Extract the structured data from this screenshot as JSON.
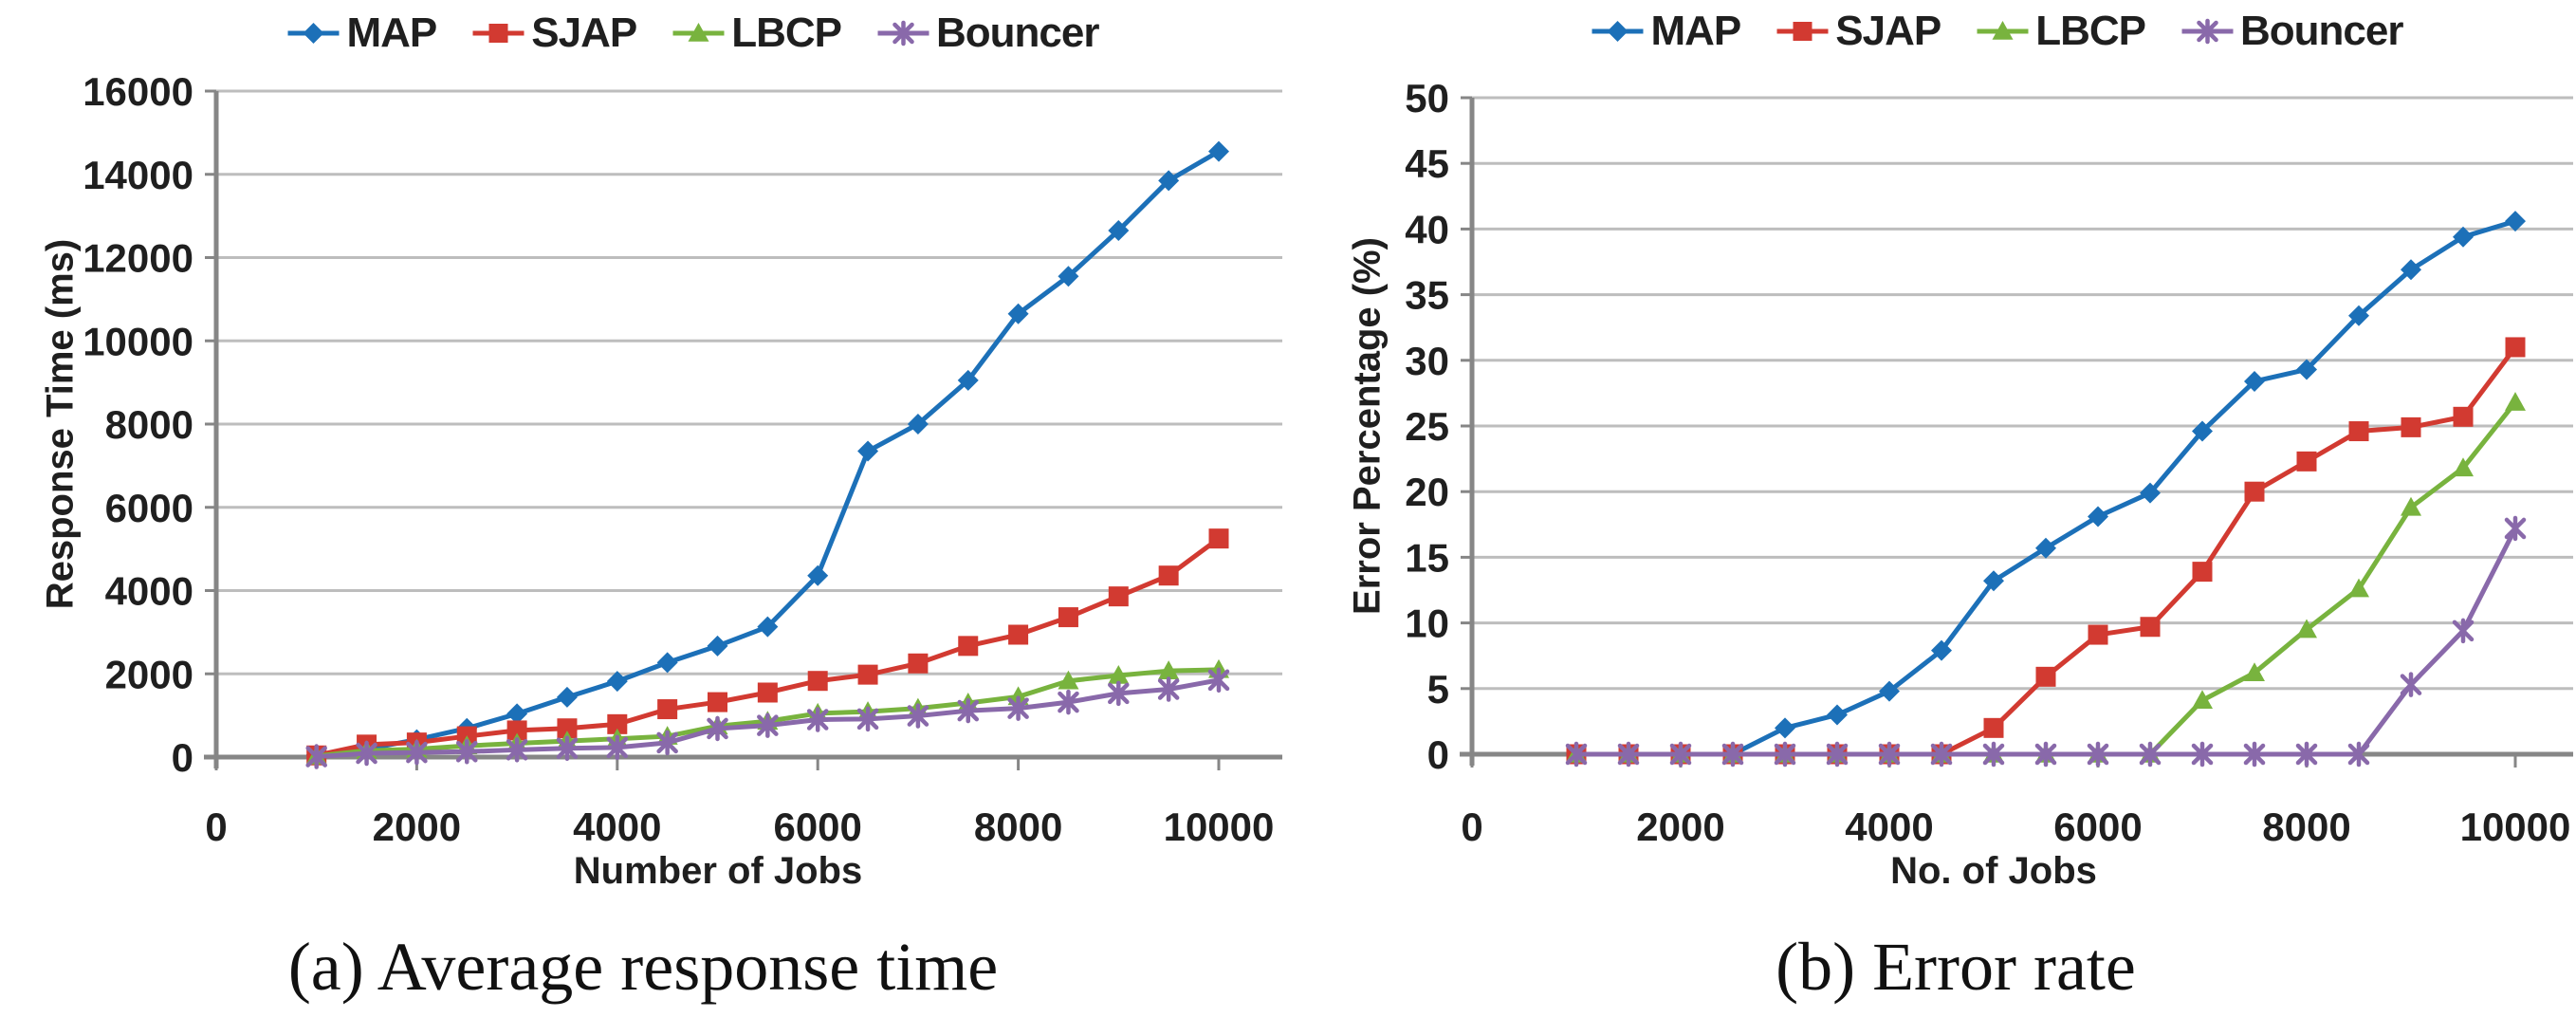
{
  "figure": {
    "background": "#ffffff",
    "text_color": "#1f1f1f",
    "gridline_color": "#bdbdbd",
    "axis_color": "#868686"
  },
  "legend": {
    "position": "top-center",
    "items": [
      {
        "label": "MAP",
        "color": "#1c70b8",
        "marker": "diamond"
      },
      {
        "label": "SJAP",
        "color": "#d23a31",
        "marker": "square"
      },
      {
        "label": "LBCP",
        "color": "#78b33e",
        "marker": "triangle"
      },
      {
        "label": "Bouncer",
        "color": "#8969aa",
        "marker": "asterisk"
      }
    ]
  },
  "chart_data": [
    {
      "type": "line",
      "caption": "(a) Average response time",
      "xlabel": "Number of Jobs",
      "ylabel": "Response Time (ms)",
      "grid": "horizontal",
      "legend_position": "top",
      "xlim": [
        0,
        10600
      ],
      "ylim": [
        0,
        16000
      ],
      "xticks": [
        0,
        2000,
        4000,
        6000,
        8000,
        10000
      ],
      "yticks": [
        0,
        2000,
        4000,
        6000,
        8000,
        10000,
        12000,
        14000,
        16000
      ],
      "x": [
        1000,
        1500,
        2000,
        2500,
        3000,
        3500,
        4000,
        4500,
        5000,
        5500,
        6000,
        6500,
        7000,
        7500,
        8000,
        8500,
        9000,
        9500,
        10000
      ],
      "series": [
        {
          "name": "MAP",
          "values": [
            50,
            190,
            420,
            690,
            1040,
            1440,
            1820,
            2270,
            2670,
            3130,
            4360,
            7350,
            8000,
            9050,
            10650,
            11550,
            12650,
            13850,
            14550
          ]
        },
        {
          "name": "SJAP",
          "values": [
            40,
            300,
            350,
            500,
            640,
            690,
            790,
            1150,
            1320,
            1550,
            1830,
            1980,
            2250,
            2670,
            2940,
            3360,
            3860,
            4360,
            5250
          ]
        },
        {
          "name": "LBCP",
          "values": [
            25,
            155,
            190,
            270,
            330,
            385,
            440,
            500,
            745,
            860,
            1050,
            1090,
            1170,
            1300,
            1450,
            1830,
            1960,
            2070,
            2100
          ]
        },
        {
          "name": "Bouncer",
          "values": [
            10,
            90,
            110,
            130,
            175,
            210,
            230,
            345,
            685,
            760,
            900,
            915,
            990,
            1115,
            1170,
            1320,
            1530,
            1630,
            1850
          ]
        }
      ]
    },
    {
      "type": "line",
      "caption": "(b) Error rate",
      "xlabel": "No. of Jobs",
      "ylabel": "Error Percentage (%)",
      "grid": "horizontal",
      "legend_position": "top",
      "xlim": [
        0,
        10600
      ],
      "ylim": [
        0,
        50
      ],
      "xticks": [
        0,
        2000,
        4000,
        6000,
        8000,
        10000
      ],
      "yticks": [
        0,
        5,
        10,
        15,
        20,
        25,
        30,
        35,
        40,
        45,
        50
      ],
      "x": [
        1000,
        1500,
        2000,
        2500,
        3000,
        3500,
        4000,
        4500,
        5000,
        5500,
        6000,
        6500,
        7000,
        7500,
        8000,
        8500,
        9000,
        9500,
        10000
      ],
      "series": [
        {
          "name": "MAP",
          "values": [
            0,
            0,
            0,
            0,
            2,
            3,
            4.8,
            7.9,
            13.2,
            15.7,
            18.1,
            19.9,
            24.6,
            28.4,
            29.3,
            33.4,
            36.9,
            39.4,
            40.6
          ]
        },
        {
          "name": "SJAP",
          "values": [
            0,
            0,
            0,
            0,
            0,
            0,
            0,
            0,
            2,
            5.9,
            9.1,
            9.7,
            13.9,
            20,
            22.3,
            24.6,
            24.9,
            25.7,
            31
          ]
        },
        {
          "name": "LBCP",
          "values": [
            0,
            0,
            0,
            0,
            0,
            0,
            0,
            0,
            0,
            0,
            0,
            0,
            4.1,
            6.2,
            9.5,
            12.6,
            18.8,
            21.8,
            26.8
          ]
        },
        {
          "name": "Bouncer",
          "values": [
            0,
            0,
            0,
            0,
            0,
            0,
            0,
            0,
            0,
            0,
            0,
            0,
            0,
            0,
            0,
            0,
            5.3,
            9.4,
            17.2
          ]
        }
      ]
    }
  ]
}
